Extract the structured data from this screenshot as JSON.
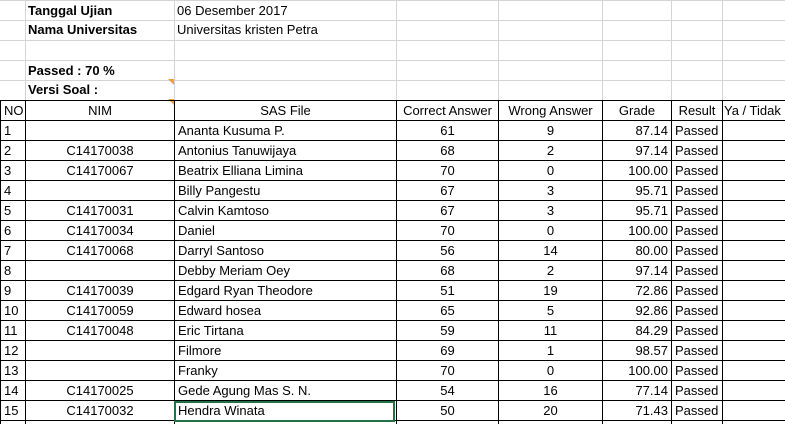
{
  "info": {
    "tanggal_label": "Tanggal Ujian",
    "tanggal_value": "06 Desember 2017",
    "universitas_label": "Nama Universitas",
    "universitas_value": "Universitas kristen Petra",
    "passed_label": "Passed : 70 %",
    "versi_label": "Versi Soal :"
  },
  "table": {
    "headers": [
      "NO",
      "NIM",
      "SAS File",
      "Correct Answer",
      "Wrong Answer",
      "Grade",
      "Result",
      "Ya / Tidak"
    ],
    "rows": [
      [
        "1",
        "",
        "Ananta Kusuma P.",
        "61",
        "9",
        "87.14",
        "Passed",
        ""
      ],
      [
        "2",
        "C14170038",
        "Antonius Tanuwijaya",
        "68",
        "2",
        "97.14",
        "Passed",
        ""
      ],
      [
        "3",
        "C14170067",
        "Beatrix Elliana Limina",
        "70",
        "0",
        "100.00",
        "Passed",
        ""
      ],
      [
        "4",
        "",
        "Billy Pangestu",
        "67",
        "3",
        "95.71",
        "Passed",
        ""
      ],
      [
        "5",
        "C14170031",
        "Calvin Kamtoso",
        "67",
        "3",
        "95.71",
        "Passed",
        ""
      ],
      [
        "6",
        "C14170034",
        "Daniel",
        "70",
        "0",
        "100.00",
        "Passed",
        ""
      ],
      [
        "7",
        "C14170068",
        "Darryl Santoso",
        "56",
        "14",
        "80.00",
        "Passed",
        ""
      ],
      [
        "8",
        "",
        "Debby Meriam Oey",
        "68",
        "2",
        "97.14",
        "Passed",
        ""
      ],
      [
        "9",
        "C14170039",
        "Edgard Ryan Theodore",
        "51",
        "19",
        "72.86",
        "Passed",
        ""
      ],
      [
        "10",
        "C14170059",
        "Edward hosea",
        "65",
        "5",
        "92.86",
        "Passed",
        ""
      ],
      [
        "11",
        "C14170048",
        "Eric Tirtana",
        "59",
        "11",
        "84.29",
        "Passed",
        ""
      ],
      [
        "12",
        "",
        "Filmore",
        "69",
        "1",
        "98.57",
        "Passed",
        ""
      ],
      [
        "13",
        "",
        "Franky",
        "70",
        "0",
        "100.00",
        "Passed",
        ""
      ],
      [
        "14",
        "C14170025",
        "Gede Agung Mas S. N.",
        "54",
        "16",
        "77.14",
        "Passed",
        ""
      ],
      [
        "15",
        "C14170032",
        "Hendra Winata",
        "50",
        "20",
        "71.43",
        "Passed",
        ""
      ]
    ]
  },
  "colors": {
    "gridline": "#d4d4d4",
    "border": "#000000",
    "comment_marker": "#e8a33d",
    "selection": "#217346"
  }
}
